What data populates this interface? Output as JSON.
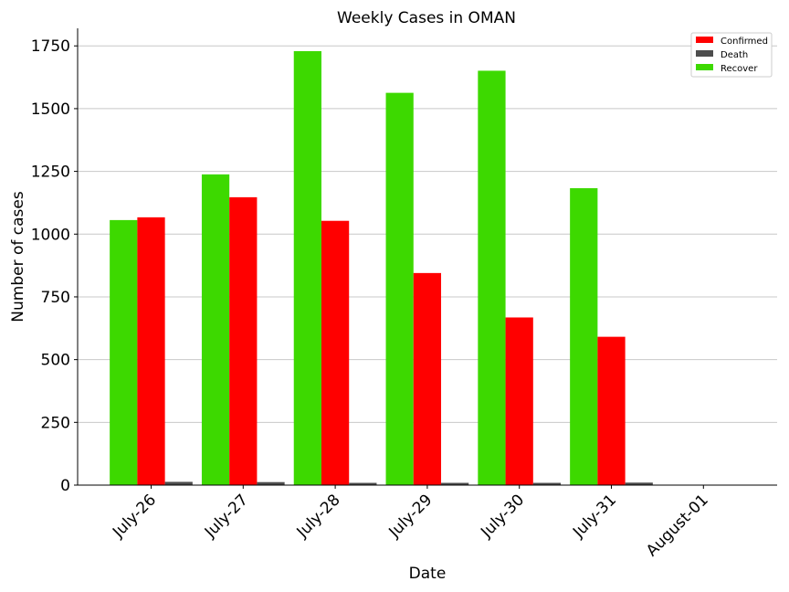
{
  "chart_data": {
    "type": "bar",
    "title": "Weekly Cases in OMAN",
    "xlabel": "Date",
    "ylabel": "Number of cases",
    "categories": [
      "July-26",
      "July-27",
      "July-28",
      "July-29",
      "July-30",
      "July-31",
      "August-01"
    ],
    "series": [
      {
        "name": "Recover",
        "color": "#3dd900",
        "values": [
          1056,
          1238,
          1729,
          1563,
          1651,
          1183,
          0
        ]
      },
      {
        "name": "Confirmed",
        "color": "#ff0000",
        "values": [
          1067,
          1147,
          1053,
          845,
          668,
          591,
          0
        ]
      },
      {
        "name": "Death",
        "color": "#4d4d4d",
        "values": [
          13,
          12,
          9,
          9,
          9,
          10,
          0
        ]
      }
    ],
    "legend": {
      "position": "top-right",
      "order": [
        "Confirmed",
        "Death",
        "Recover"
      ]
    },
    "ylim": [
      0,
      1820
    ],
    "yticks": [
      0,
      250,
      500,
      750,
      1000,
      1250,
      1500,
      1750
    ],
    "ytick_labels": [
      "0",
      "250",
      "500",
      "750",
      "1000",
      "1250",
      "1500",
      "1750"
    ],
    "grid": "horizontal"
  }
}
